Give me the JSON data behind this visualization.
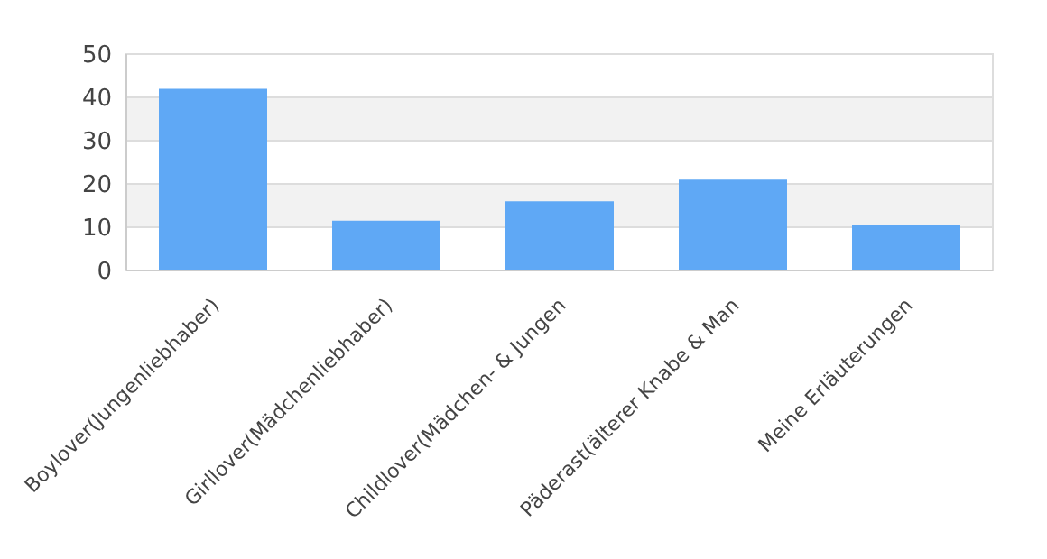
{
  "chart_data": {
    "type": "bar",
    "categories": [
      "Boylover(Jungenliebhaber)",
      "Girllover(Mädchenliebhaber)",
      "Childlover(Mädchen- & Jungen",
      "Päderast(älterer Knabe & Man",
      "Meine Erläuterungen"
    ],
    "values": [
      42,
      11.5,
      16,
      21,
      10.5
    ],
    "color": "#5fa8f5",
    "ylim": [
      0,
      50
    ],
    "yticks": [
      0,
      10,
      20,
      30,
      40,
      50
    ],
    "grid": "y"
  }
}
